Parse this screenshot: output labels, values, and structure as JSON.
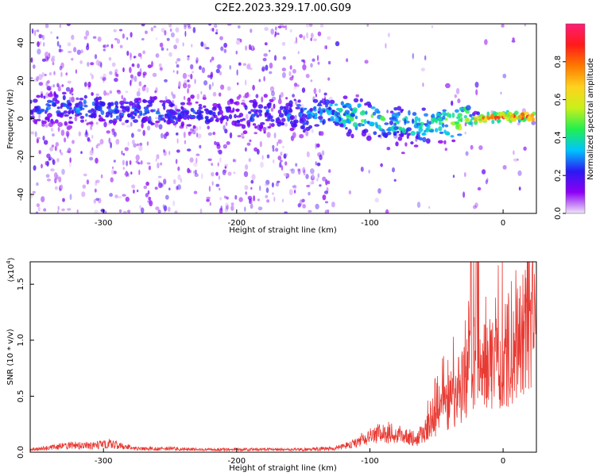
{
  "figure_title": "C2E2.2023.329.17.00.G09",
  "chart_data": [
    {
      "type": "heatmap",
      "title": "",
      "xlabel": "Height of straight line (km)",
      "ylabel": "Frequency (Hz)",
      "xlim": [
        -355,
        25
      ],
      "ylim": [
        -50,
        50
      ],
      "x_ticks": [
        -300,
        -200,
        -100,
        0
      ],
      "x_tick_labels": [
        "-300",
        "-200",
        "-100",
        "0"
      ],
      "y_ticks": [
        -40,
        -20,
        0,
        20,
        40
      ],
      "y_tick_labels": [
        "-40",
        "-20",
        "0",
        "20",
        "40"
      ],
      "grid": false,
      "colorbar": {
        "label": "Normalized spectral amplitude",
        "range": [
          0,
          1
        ],
        "ticks": [
          0.0,
          0.2,
          0.4,
          0.6,
          0.8
        ],
        "tick_labels": [
          "0.0",
          "0.2",
          "0.4",
          "0.6",
          "0.8"
        ],
        "colors": [
          "#f0e6f7",
          "#8e00f5",
          "#2b19f2",
          "#00c4ff",
          "#20f050",
          "#c9f01a",
          "#ffd21f",
          "#ff7a00",
          "#ff1a1a",
          "#ff1e76"
        ]
      },
      "ridge": {
        "x": [
          -355,
          -300,
          -250,
          -200,
          -150,
          -120,
          -100,
          -80,
          -60,
          -40,
          -20,
          0,
          25
        ],
        "freq": [
          6,
          5,
          3,
          2,
          2,
          2,
          0,
          -3,
          -4,
          -2,
          0,
          1,
          1
        ],
        "peak_amplitude": [
          0.25,
          0.3,
          0.25,
          0.22,
          0.3,
          0.4,
          0.45,
          0.4,
          0.38,
          0.5,
          0.7,
          0.85,
          0.9
        ]
      }
    },
    {
      "type": "line",
      "title": "",
      "xlabel": "Height of straight line (km)",
      "ylabel": "SNR (10 * v/v)",
      "y_multiplier_label": "(x10",
      "y_multiplier_exp": "4",
      "y_multiplier_close": ")",
      "xlim": [
        -355,
        25
      ],
      "ylim": [
        0,
        1.7
      ],
      "x_ticks": [
        -300,
        -200,
        -100,
        0
      ],
      "x_tick_labels": [
        "-300",
        "-200",
        "-100",
        "0"
      ],
      "y_ticks": [
        0.0,
        0.5,
        1.0,
        1.5
      ],
      "y_tick_labels": [
        "0.0",
        "0.5",
        "1.0",
        "1.5"
      ],
      "grid": false,
      "line_color": "#e83a33",
      "series": [
        {
          "x": [
            -355,
            -340,
            -325,
            -310,
            -295,
            -285,
            -270,
            -250,
            -230,
            -210,
            -190,
            -170,
            -150,
            -130,
            -115,
            -105,
            -95,
            -85,
            -75,
            -65,
            -55,
            -45,
            -35,
            -25,
            -20,
            -15,
            -10,
            -5,
            0,
            5,
            10,
            15,
            20,
            25
          ],
          "values": [
            0.03,
            0.05,
            0.08,
            0.07,
            0.1,
            0.06,
            0.04,
            0.04,
            0.03,
            0.03,
            0.03,
            0.03,
            0.03,
            0.04,
            0.08,
            0.15,
            0.2,
            0.22,
            0.18,
            0.15,
            0.3,
            0.5,
            0.65,
            0.9,
            1.05,
            0.95,
            1.05,
            1.0,
            1.1,
            1.15,
            1.2,
            1.3,
            1.4,
            1.45
          ]
        }
      ]
    }
  ]
}
